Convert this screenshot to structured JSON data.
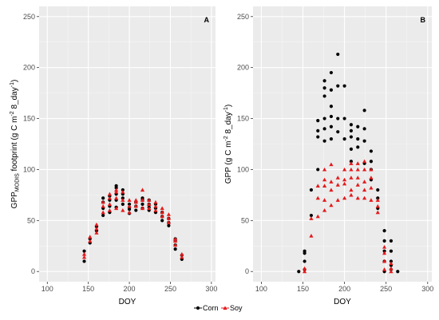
{
  "chart_data": [
    {
      "type": "scatter",
      "panel_label": "A",
      "xlabel": "DOY",
      "ylabel_parts": {
        "main": "GPP",
        "sub": "MODIS",
        "rest": " footprint (g C m",
        "sup1": "-2",
        "rest2": " 8_day",
        "sup2": "-1",
        "end": ")"
      },
      "xlim": [
        90,
        305
      ],
      "ylim": [
        -10,
        260
      ],
      "xticks": [
        100,
        150,
        200,
        250,
        300
      ],
      "yticks": [
        0,
        50,
        100,
        150,
        200,
        250
      ],
      "grid": true,
      "series": [
        {
          "name": "Corn",
          "color": "#000000",
          "marker": "circle",
          "points": [
            [
              145,
              10
            ],
            [
              145,
              20
            ],
            [
              152,
              28
            ],
            [
              152,
              32
            ],
            [
              160,
              40
            ],
            [
              160,
              44
            ],
            [
              168,
              55
            ],
            [
              168,
              62
            ],
            [
              168,
              68
            ],
            [
              168,
              72
            ],
            [
              176,
              58
            ],
            [
              176,
              64
            ],
            [
              176,
              70
            ],
            [
              176,
              74
            ],
            [
              184,
              63
            ],
            [
              184,
              70
            ],
            [
              184,
              76
            ],
            [
              184,
              82
            ],
            [
              184,
              84
            ],
            [
              192,
              66
            ],
            [
              192,
              72
            ],
            [
              192,
              76
            ],
            [
              192,
              80
            ],
            [
              200,
              57
            ],
            [
              200,
              61
            ],
            [
              200,
              63
            ],
            [
              200,
              66
            ],
            [
              208,
              60
            ],
            [
              208,
              64
            ],
            [
              208,
              68
            ],
            [
              216,
              62
            ],
            [
              216,
              66
            ],
            [
              216,
              70
            ],
            [
              216,
              72
            ],
            [
              224,
              60
            ],
            [
              224,
              63
            ],
            [
              224,
              66
            ],
            [
              224,
              70
            ],
            [
              232,
              58
            ],
            [
              232,
              62
            ],
            [
              232,
              66
            ],
            [
              240,
              50
            ],
            [
              240,
              54
            ],
            [
              240,
              58
            ],
            [
              248,
              45
            ],
            [
              248,
              48
            ],
            [
              248,
              52
            ],
            [
              256,
              22
            ],
            [
              256,
              26
            ],
            [
              256,
              30
            ],
            [
              256,
              32
            ],
            [
              264,
              12
            ],
            [
              264,
              16
            ]
          ]
        },
        {
          "name": "Soy",
          "color": "#e41a1c",
          "marker": "triangle",
          "points": [
            [
              145,
              14
            ],
            [
              145,
              17
            ],
            [
              152,
              30
            ],
            [
              152,
              34
            ],
            [
              160,
              38
            ],
            [
              160,
              42
            ],
            [
              160,
              46
            ],
            [
              168,
              58
            ],
            [
              168,
              64
            ],
            [
              168,
              68
            ],
            [
              176,
              60
            ],
            [
              176,
              66
            ],
            [
              176,
              72
            ],
            [
              176,
              76
            ],
            [
              184,
              62
            ],
            [
              184,
              72
            ],
            [
              184,
              78
            ],
            [
              184,
              80
            ],
            [
              192,
              60
            ],
            [
              192,
              70
            ],
            [
              192,
              78
            ],
            [
              200,
              58
            ],
            [
              200,
              64
            ],
            [
              200,
              70
            ],
            [
              208,
              64
            ],
            [
              208,
              68
            ],
            [
              208,
              70
            ],
            [
              216,
              62
            ],
            [
              216,
              70
            ],
            [
              216,
              80
            ],
            [
              224,
              62
            ],
            [
              224,
              66
            ],
            [
              224,
              70
            ],
            [
              232,
              60
            ],
            [
              232,
              64
            ],
            [
              232,
              68
            ],
            [
              240,
              54
            ],
            [
              240,
              58
            ],
            [
              240,
              62
            ],
            [
              248,
              48
            ],
            [
              248,
              52
            ],
            [
              248,
              56
            ],
            [
              256,
              26
            ],
            [
              256,
              30
            ],
            [
              256,
              32
            ],
            [
              264,
              14
            ],
            [
              264,
              17
            ]
          ]
        }
      ]
    },
    {
      "type": "scatter",
      "panel_label": "B",
      "xlabel": "DOY",
      "ylabel_parts": {
        "main": "GPP",
        "sub": "",
        "rest": "  (g C m",
        "sup1": "-2",
        "rest2": " 8_day",
        "sup2": "-1",
        "end": ")"
      },
      "xlim": [
        90,
        305
      ],
      "ylim": [
        -10,
        260
      ],
      "xticks": [
        100,
        150,
        200,
        250,
        300
      ],
      "yticks": [
        0,
        50,
        100,
        150,
        200,
        250
      ],
      "grid": true,
      "series": [
        {
          "name": "Corn",
          "color": "#000000",
          "marker": "circle",
          "points": [
            [
              145,
              0
            ],
            [
              152,
              2
            ],
            [
              152,
              10
            ],
            [
              152,
              18
            ],
            [
              152,
              20
            ],
            [
              160,
              55
            ],
            [
              160,
              80
            ],
            [
              168,
              100
            ],
            [
              168,
              132
            ],
            [
              168,
              138
            ],
            [
              168,
              148
            ],
            [
              176,
              128
            ],
            [
              176,
              140
            ],
            [
              176,
              150
            ],
            [
              176,
              172
            ],
            [
              176,
              180
            ],
            [
              176,
              187
            ],
            [
              184,
              130
            ],
            [
              184,
              142
            ],
            [
              184,
              152
            ],
            [
              184,
              162
            ],
            [
              184,
              178
            ],
            [
              184,
              195
            ],
            [
              192,
              137
            ],
            [
              192,
              150
            ],
            [
              192,
              182
            ],
            [
              192,
              213
            ],
            [
              200,
              130
            ],
            [
              200,
              150
            ],
            [
              200,
              182
            ],
            [
              208,
              108
            ],
            [
              208,
              120
            ],
            [
              208,
              132
            ],
            [
              208,
              138
            ],
            [
              208,
              144
            ],
            [
              216,
              122
            ],
            [
              216,
              130
            ],
            [
              216,
              142
            ],
            [
              224,
              106
            ],
            [
              224,
              128
            ],
            [
              224,
              140
            ],
            [
              224,
              158
            ],
            [
              232,
              90
            ],
            [
              232,
              100
            ],
            [
              232,
              108
            ],
            [
              232,
              118
            ],
            [
              240,
              62
            ],
            [
              240,
              72
            ],
            [
              240,
              80
            ],
            [
              248,
              0
            ],
            [
              248,
              10
            ],
            [
              248,
              20
            ],
            [
              248,
              30
            ],
            [
              248,
              40
            ],
            [
              256,
              2
            ],
            [
              256,
              6
            ],
            [
              256,
              10
            ],
            [
              256,
              20
            ],
            [
              256,
              30
            ],
            [
              264,
              0
            ]
          ]
        },
        {
          "name": "Soy",
          "color": "#e41a1c",
          "marker": "triangle",
          "points": [
            [
              152,
              0
            ],
            [
              152,
              3
            ],
            [
              160,
              35
            ],
            [
              160,
              52
            ],
            [
              168,
              54
            ],
            [
              168,
              72
            ],
            [
              168,
              84
            ],
            [
              176,
              60
            ],
            [
              176,
              70
            ],
            [
              176,
              84
            ],
            [
              176,
              90
            ],
            [
              176,
              100
            ],
            [
              184,
              65
            ],
            [
              184,
              80
            ],
            [
              184,
              88
            ],
            [
              184,
              105
            ],
            [
              192,
              70
            ],
            [
              192,
              85
            ],
            [
              192,
              92
            ],
            [
              200,
              72
            ],
            [
              200,
              86
            ],
            [
              200,
              90
            ],
            [
              200,
              100
            ],
            [
              208,
              75
            ],
            [
              208,
              80
            ],
            [
              208,
              92
            ],
            [
              208,
              100
            ],
            [
              208,
              106
            ],
            [
              216,
              72
            ],
            [
              216,
              85
            ],
            [
              216,
              92
            ],
            [
              216,
              100
            ],
            [
              216,
              106
            ],
            [
              224,
              72
            ],
            [
              224,
              80
            ],
            [
              224,
              88
            ],
            [
              224,
              100
            ],
            [
              224,
              108
            ],
            [
              232,
              70
            ],
            [
              232,
              82
            ],
            [
              232,
              92
            ],
            [
              232,
              100
            ],
            [
              240,
              58
            ],
            [
              240,
              64
            ],
            [
              240,
              70
            ],
            [
              248,
              2
            ],
            [
              248,
              10
            ],
            [
              248,
              18
            ],
            [
              248,
              24
            ],
            [
              256,
              0
            ],
            [
              256,
              3
            ],
            [
              256,
              8
            ]
          ]
        }
      ]
    }
  ],
  "legend": {
    "items": [
      {
        "label": "Corn",
        "color": "#000000",
        "marker": "circle"
      },
      {
        "label": "Soy",
        "color": "#e41a1c",
        "marker": "triangle"
      }
    ]
  }
}
